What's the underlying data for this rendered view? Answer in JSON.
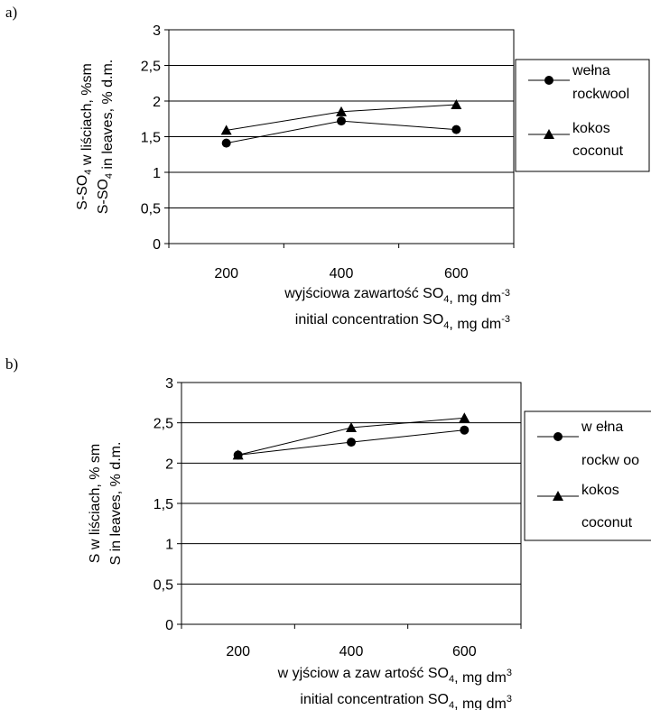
{
  "chart_data": [
    {
      "type": "line",
      "panel_label": "a)",
      "categories": [
        "200",
        "400",
        "600"
      ],
      "x": [
        200,
        400,
        600
      ],
      "series": [
        {
          "name_line1": "wełna",
          "name_line2": "rockwool",
          "marker": "circle",
          "values": [
            1.41,
            1.72,
            1.6
          ]
        },
        {
          "name_line1": "kokos",
          "name_line2": "coconut",
          "marker": "triangle",
          "values": [
            1.59,
            1.85,
            1.95
          ]
        }
      ],
      "ylabel_line1": "S-SO4 w liściach, %sm",
      "ylabel_line2": "S-SO4 in leaves, % d.m.",
      "xlabel_line1": "wyjściowa zawartość SO4, mg dm-3",
      "xlabel_line2": "initial concentration SO4, mg dm-3",
      "yticks": [
        "0",
        "0,5",
        "1",
        "1,5",
        "2",
        "2,5",
        "3"
      ],
      "ylim": [
        0,
        3
      ],
      "grid": "horizontal",
      "legend_position": "right"
    },
    {
      "type": "line",
      "panel_label": "b)",
      "categories": [
        "200",
        "400",
        "600"
      ],
      "x": [
        200,
        400,
        600
      ],
      "series": [
        {
          "name_line1": "w ełna",
          "name_line2": "rockw oo",
          "marker": "circle",
          "values": [
            2.1,
            2.26,
            2.41
          ]
        },
        {
          "name_line1": "kokos",
          "name_line2": "coconut",
          "marker": "triangle",
          "values": [
            2.1,
            2.44,
            2.56
          ]
        }
      ],
      "ylabel_line1": "S w liściach, % sm",
      "ylabel_line2": "S in leaves, % d.m.",
      "xlabel_line1": "w yjściow a zaw artość SO4, mg dm3",
      "xlabel_line2": "initial concentration SO4, mg dm3",
      "yticks": [
        "0",
        "0,5",
        "1",
        "1,5",
        "2",
        "2,5",
        "3"
      ],
      "ylim": [
        0,
        3
      ],
      "grid": "horizontal",
      "legend_position": "right"
    }
  ]
}
